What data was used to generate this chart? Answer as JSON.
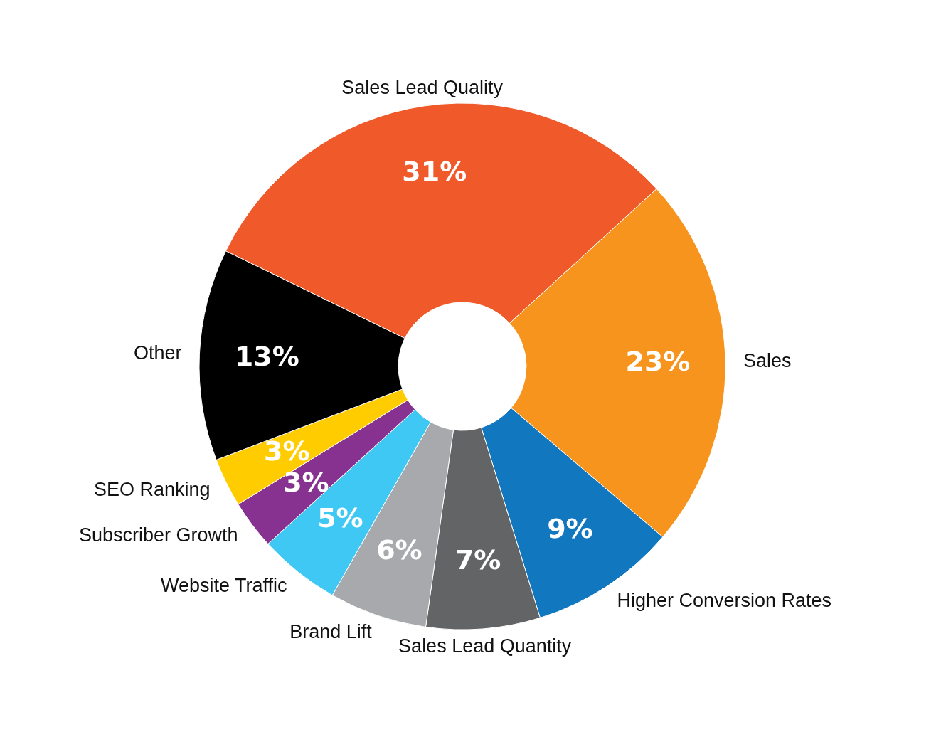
{
  "chart_data": {
    "type": "donut",
    "categories": [
      "Sales Lead Quality",
      "Sales",
      "Higher Conversion Rates",
      "Sales Lead Quantity",
      "Brand Lift",
      "Website Traffic",
      "Subscriber Growth",
      "SEO Ranking",
      "Other"
    ],
    "values": [
      31,
      23,
      9,
      7,
      6,
      5,
      3,
      3,
      13
    ],
    "colors": [
      "#f05a2b",
      "#f7941d",
      "#1177bf",
      "#636466",
      "#a7a9ac",
      "#3fc8f4",
      "#873290",
      "#ffcc00",
      "#000000"
    ],
    "value_labels": [
      "31%",
      "23%",
      "9%",
      "7%",
      "6%",
      "5%",
      "3%",
      "3%",
      "13%"
    ],
    "legend": false
  }
}
